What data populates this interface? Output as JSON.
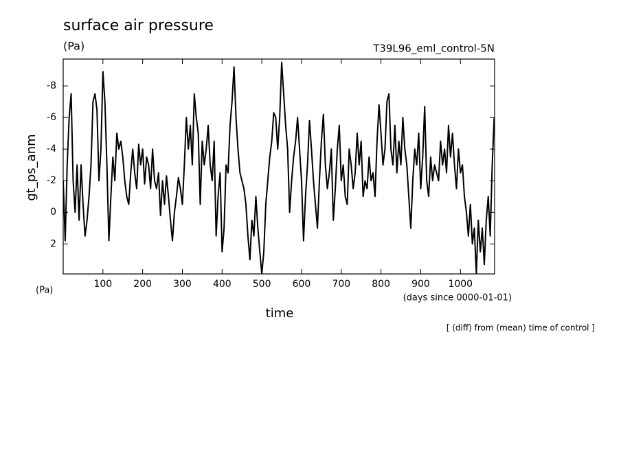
{
  "chart_data": {
    "type": "line",
    "title": "surface air pressure",
    "units": "(Pa)",
    "subtitle": "T39L96_eml_control-5N",
    "y_label": "gt_ps_anm",
    "y_units": "(Pa)",
    "x_label": "time",
    "x_units": "(days since 0000-01-01)",
    "footnote": "[ (diff) from (mean) time of control ]",
    "xlim": [
      0,
      1086
    ],
    "xticks": [
      100,
      200,
      300,
      400,
      500,
      600,
      700,
      800,
      900,
      1000
    ],
    "ylim": [
      -9.7,
      3.9
    ],
    "y_inverted": true,
    "yticks": [
      -8,
      -6,
      -4,
      -2,
      0,
      2
    ],
    "x": [
      0,
      5,
      10,
      15,
      20,
      25,
      30,
      35,
      40,
      45,
      50,
      55,
      60,
      65,
      70,
      75,
      80,
      85,
      90,
      95,
      100,
      105,
      110,
      115,
      120,
      125,
      130,
      135,
      140,
      145,
      150,
      155,
      160,
      165,
      170,
      175,
      180,
      185,
      190,
      195,
      200,
      205,
      210,
      215,
      220,
      225,
      230,
      235,
      240,
      245,
      250,
      255,
      260,
      265,
      270,
      275,
      280,
      285,
      290,
      295,
      300,
      305,
      310,
      315,
      320,
      325,
      330,
      335,
      340,
      345,
      350,
      355,
      360,
      365,
      370,
      375,
      380,
      385,
      390,
      395,
      400,
      405,
      410,
      415,
      420,
      425,
      430,
      435,
      440,
      445,
      450,
      455,
      460,
      465,
      470,
      475,
      480,
      485,
      490,
      495,
      500,
      505,
      510,
      515,
      520,
      525,
      530,
      535,
      540,
      545,
      550,
      555,
      560,
      565,
      570,
      575,
      580,
      585,
      590,
      595,
      600,
      605,
      610,
      615,
      620,
      625,
      630,
      635,
      640,
      645,
      650,
      655,
      660,
      665,
      670,
      675,
      680,
      685,
      690,
      695,
      700,
      705,
      710,
      715,
      720,
      725,
      730,
      735,
      740,
      745,
      750,
      755,
      760,
      765,
      770,
      775,
      780,
      785,
      790,
      795,
      800,
      805,
      810,
      815,
      820,
      825,
      830,
      835,
      840,
      845,
      850,
      855,
      860,
      865,
      870,
      875,
      880,
      885,
      890,
      895,
      900,
      905,
      910,
      915,
      920,
      925,
      930,
      935,
      940,
      945,
      950,
      955,
      960,
      965,
      970,
      975,
      980,
      985,
      990,
      995,
      1000,
      1005,
      1010,
      1015,
      1020,
      1025,
      1030,
      1035,
      1040,
      1045,
      1050,
      1055,
      1060,
      1065,
      1070,
      1075,
      1080,
      1085
    ],
    "series": [
      {
        "color": "#000000",
        "values": [
          -2,
          1.8,
          -3,
          -6,
          -7.5,
          -2,
          0,
          -3,
          0.5,
          -3,
          -0.5,
          1.5,
          0.5,
          -1,
          -3,
          -7,
          -7.5,
          -6.5,
          -2,
          -4,
          -8.9,
          -7,
          -3,
          1.8,
          -1,
          -3.5,
          -2,
          -5,
          -4,
          -4.5,
          -3.5,
          -2,
          -1,
          -0.5,
          -2.5,
          -4,
          -2.5,
          -1.5,
          -4.3,
          -3,
          -4,
          -1.8,
          -3.5,
          -3,
          -1.5,
          -4,
          -2,
          -1.5,
          -2.5,
          0.2,
          -2,
          -0.5,
          -2.3,
          -1,
          0.5,
          1.8,
          0,
          -1,
          -2.2,
          -1.5,
          -0.5,
          -3,
          -6,
          -4,
          -5.5,
          -3,
          -7.5,
          -6,
          -5,
          -0.5,
          -4.5,
          -3,
          -4,
          -5.5,
          -3,
          -2,
          -4.5,
          1.5,
          -1,
          -2.5,
          2.5,
          1,
          -3,
          -2.5,
          -5.5,
          -7,
          -9.2,
          -6,
          -4,
          -2.5,
          -2,
          -1.5,
          -0.5,
          1.5,
          3,
          0.5,
          1.5,
          -1,
          1,
          2.5,
          3.9,
          2.5,
          -0.5,
          -2,
          -3.5,
          -4.5,
          -6.3,
          -6,
          -4,
          -6,
          -9.5,
          -7.5,
          -5.5,
          -4,
          0,
          -2,
          -3.5,
          -4.5,
          -6,
          -4,
          -2,
          1.8,
          -1,
          -3,
          -5.8,
          -4,
          -2,
          -0.5,
          1,
          -2,
          -4.5,
          -6.2,
          -3,
          -1.5,
          -2.5,
          -4,
          0.5,
          -1.5,
          -4,
          -5.5,
          -2,
          -3,
          -1,
          -0.5,
          -4,
          -3,
          -1.5,
          -2.5,
          -5,
          -3,
          -4.5,
          -1,
          -2,
          -1.5,
          -3.5,
          -2,
          -2.5,
          -1,
          -4.5,
          -6.8,
          -5,
          -3,
          -4,
          -7,
          -7.5,
          -4,
          -3,
          -5.5,
          -2.5,
          -4.5,
          -3,
          -6,
          -4,
          -3,
          -1,
          1,
          -2,
          -4,
          -3,
          -5,
          -1.5,
          -3.5,
          -6.7,
          -2,
          -1,
          -3.5,
          -2,
          -3,
          -2.5,
          -2,
          -4.5,
          -3,
          -4,
          -2.5,
          -5.5,
          -3.5,
          -5,
          -3,
          -1.5,
          -4,
          -2.5,
          -3,
          -1,
          0,
          1.5,
          -0.5,
          2,
          1,
          3.9,
          0.5,
          2.5,
          1,
          3.3,
          0.5,
          -1,
          1.5,
          -3,
          -6
        ]
      }
    ]
  }
}
